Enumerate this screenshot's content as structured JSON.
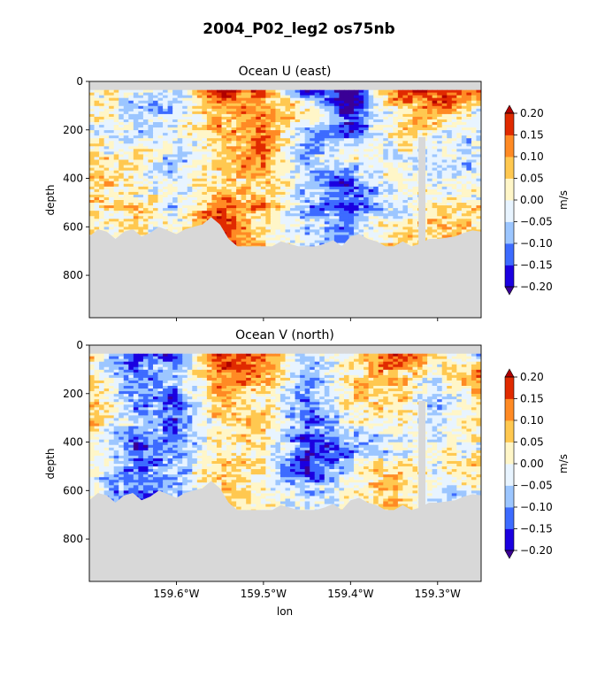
{
  "figure": {
    "title": "2004_P02_leg2 os75nb"
  },
  "colors": {
    "levels": [
      -0.2,
      -0.15,
      -0.1,
      -0.05,
      0.0,
      0.05,
      0.1,
      0.15,
      0.2
    ],
    "band_colors": [
      "#1b00e0",
      "#3d6bff",
      "#9cc6ff",
      "#e8f4ff",
      "#fff6c8",
      "#ffc850",
      "#ff8a24",
      "#e02a00"
    ],
    "under": "#3a0096",
    "over": "#b00000",
    "mask": "#d8d8d8"
  },
  "chart_data": [
    {
      "type": "heatmap",
      "title": "Ocean U (east)",
      "xlabel": "",
      "ylabel": "depth",
      "xlim": [
        -159.7,
        -159.25
      ],
      "ylim": [
        975,
        0
      ],
      "yticks": [
        0,
        200,
        400,
        600,
        800
      ],
      "xticks": [
        -159.6,
        -159.5,
        -159.4,
        -159.3
      ],
      "xtick_labels": [
        "",
        "",
        "",
        ""
      ],
      "colorbar": {
        "label": "m/s",
        "ticks": [
          "0.20",
          "0.15",
          "0.10",
          "0.05",
          "0.00",
          "−0.05",
          "−0.10",
          "−0.15",
          "−0.20"
        ],
        "extend": "both"
      },
      "data_top_depth": 35,
      "seafloor": {
        "lon": [
          -159.7,
          -159.69,
          -159.68,
          -159.67,
          -159.66,
          -159.65,
          -159.64,
          -159.63,
          -159.62,
          -159.61,
          -159.6,
          -159.59,
          -159.58,
          -159.57,
          -159.56,
          -159.55,
          -159.54,
          -159.53,
          -159.52,
          -159.51,
          -159.5,
          -159.49,
          -159.48,
          -159.47,
          -159.46,
          -159.45,
          -159.44,
          -159.43,
          -159.42,
          -159.41,
          -159.4,
          -159.39,
          -159.38,
          -159.37,
          -159.36,
          -159.35,
          -159.34,
          -159.33,
          -159.32,
          -159.31,
          -159.3,
          -159.29,
          -159.28,
          -159.27,
          -159.26,
          -159.25
        ],
        "depth": [
          640,
          610,
          620,
          650,
          620,
          610,
          640,
          625,
          600,
          615,
          630,
          610,
          600,
          590,
          560,
          590,
          650,
          680,
          680,
          680,
          680,
          680,
          660,
          670,
          680,
          680,
          680,
          670,
          655,
          680,
          640,
          630,
          650,
          660,
          680,
          680,
          660,
          680,
          670,
          650,
          650,
          645,
          640,
          625,
          615,
          620
        ]
      },
      "gap_band": {
        "lon": [
          -159.322,
          -159.314
        ],
        "depth_range": [
          230,
          680
        ]
      },
      "cells": {
        "lon": [
          -159.7,
          -159.65,
          -159.6,
          -159.55,
          -159.5,
          -159.45,
          -159.4,
          -159.35,
          -159.3,
          -159.25
        ],
        "depth": [
          35,
          120,
          220,
          320,
          420,
          520,
          620
        ],
        "values": [
          [
            0.03,
            -0.02,
            -0.05,
            0.22,
            0.12,
            -0.18,
            -0.25,
            0.17,
            0.2,
            0.18
          ],
          [
            0.02,
            -0.06,
            -0.08,
            0.12,
            0.1,
            0.05,
            -0.22,
            0.02,
            0.12,
            -0.04
          ],
          [
            0.0,
            -0.04,
            -0.02,
            0.08,
            0.14,
            -0.08,
            -0.12,
            0.05,
            0.02,
            -0.04
          ],
          [
            0.05,
            0.02,
            -0.06,
            0.05,
            0.12,
            -0.1,
            0.02,
            -0.04,
            -0.02,
            -0.05
          ],
          [
            0.08,
            0.01,
            -0.03,
            0.04,
            0.06,
            -0.05,
            -0.16,
            0.03,
            -0.05,
            0.0
          ],
          [
            0.04,
            0.06,
            -0.04,
            0.15,
            0.09,
            -0.08,
            -0.12,
            -0.06,
            0.07,
            0.03
          ],
          [
            0.01,
            0.03,
            0.0,
            0.17,
            0.05,
            -0.04,
            -0.08,
            0.05,
            0.07,
            0.02
          ]
        ]
      }
    },
    {
      "type": "heatmap",
      "title": "Ocean V (north)",
      "xlabel": "lon",
      "ylabel": "depth",
      "xlim": [
        -159.7,
        -159.25
      ],
      "ylim": [
        975,
        0
      ],
      "yticks": [
        0,
        200,
        400,
        600,
        800
      ],
      "xticks": [
        -159.6,
        -159.5,
        -159.4,
        -159.3
      ],
      "xtick_labels": [
        "159.6°W",
        "159.5°W",
        "159.4°W",
        "159.3°W"
      ],
      "colorbar": {
        "label": "m/s",
        "ticks": [
          "0.20",
          "0.15",
          "0.10",
          "0.05",
          "0.00",
          "−0.05",
          "−0.10",
          "−0.15",
          "−0.20"
        ],
        "extend": "both"
      },
      "data_top_depth": 35,
      "seafloor": {
        "lon": [
          -159.7,
          -159.69,
          -159.68,
          -159.67,
          -159.66,
          -159.65,
          -159.64,
          -159.63,
          -159.62,
          -159.61,
          -159.6,
          -159.59,
          -159.58,
          -159.57,
          -159.56,
          -159.55,
          -159.54,
          -159.53,
          -159.52,
          -159.51,
          -159.5,
          -159.49,
          -159.48,
          -159.47,
          -159.46,
          -159.45,
          -159.44,
          -159.43,
          -159.42,
          -159.41,
          -159.4,
          -159.39,
          -159.38,
          -159.37,
          -159.36,
          -159.35,
          -159.34,
          -159.33,
          -159.32,
          -159.31,
          -159.3,
          -159.29,
          -159.28,
          -159.27,
          -159.26,
          -159.25
        ],
        "depth": [
          640,
          610,
          620,
          650,
          620,
          610,
          640,
          625,
          600,
          615,
          630,
          610,
          600,
          590,
          560,
          590,
          650,
          680,
          680,
          680,
          680,
          680,
          660,
          670,
          680,
          680,
          680,
          670,
          655,
          680,
          640,
          630,
          650,
          660,
          680,
          680,
          660,
          680,
          670,
          650,
          650,
          645,
          640,
          625,
          615,
          620
        ]
      },
      "gap_band": {
        "lon": [
          -159.322,
          -159.314
        ],
        "depth_range": [
          230,
          680
        ]
      },
      "cells": {
        "lon": [
          -159.7,
          -159.65,
          -159.6,
          -159.55,
          -159.5,
          -159.45,
          -159.4,
          -159.35,
          -159.3,
          -159.25
        ],
        "depth": [
          35,
          120,
          220,
          320,
          420,
          520,
          620
        ],
        "values": [
          [
            0.05,
            -0.2,
            -0.12,
            0.2,
            0.1,
            -0.05,
            0.03,
            0.18,
            0.06,
            -0.1
          ],
          [
            0.04,
            -0.12,
            -0.05,
            0.13,
            0.12,
            -0.08,
            0.02,
            0.1,
            -0.03,
            0.14
          ],
          [
            0.08,
            -0.08,
            -0.14,
            0.1,
            0.02,
            -0.1,
            0.06,
            0.06,
            -0.04,
            0.05
          ],
          [
            0.06,
            -0.06,
            -0.12,
            0.04,
            0.08,
            -0.14,
            -0.02,
            0.03,
            -0.08,
            0.03
          ],
          [
            0.03,
            -0.15,
            -0.1,
            0.02,
            0.04,
            -0.16,
            -0.12,
            -0.04,
            0.02,
            0.01
          ],
          [
            0.02,
            -0.1,
            -0.08,
            0.06,
            0.02,
            -0.18,
            -0.03,
            0.1,
            -0.03,
            0.07
          ],
          [
            0.0,
            -0.14,
            -0.06,
            0.08,
            0.03,
            -0.05,
            0.02,
            0.09,
            -0.04,
            -0.05
          ]
        ]
      }
    }
  ]
}
